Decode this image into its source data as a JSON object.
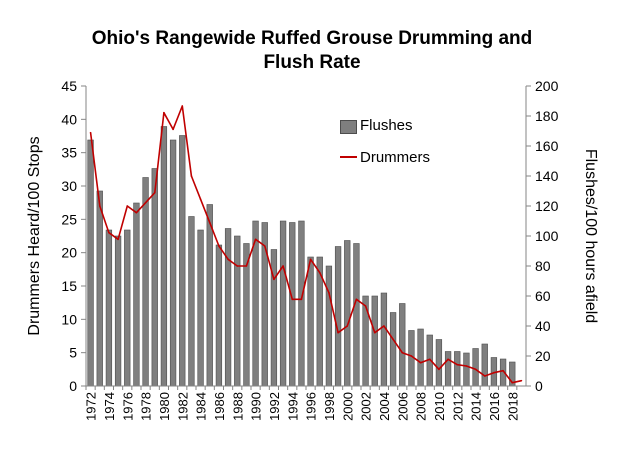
{
  "chart_data": {
    "type": "bar",
    "title_lines": [
      "Ohio's Rangewide Ruffed Grouse Drumming and",
      "Flush Rate"
    ],
    "ylabel": "Drummers Heard/100 Stops",
    "y2label": "Flushes/100 hours afield",
    "ylim": [
      0,
      45
    ],
    "y2lim": [
      0,
      200
    ],
    "yticks": [
      0,
      5,
      10,
      15,
      20,
      25,
      30,
      35,
      40,
      45
    ],
    "y2ticks": [
      0,
      20,
      40,
      60,
      80,
      100,
      120,
      140,
      160,
      180,
      200
    ],
    "x": [
      1972,
      1973,
      1974,
      1975,
      1976,
      1977,
      1978,
      1979,
      1980,
      1981,
      1982,
      1983,
      1984,
      1985,
      1986,
      1987,
      1988,
      1989,
      1990,
      1991,
      1992,
      1993,
      1994,
      1995,
      1996,
      1997,
      1998,
      1999,
      2000,
      2001,
      2002,
      2003,
      2004,
      2005,
      2006,
      2007,
      2008,
      2009,
      2010,
      2011,
      2012,
      2013,
      2014,
      2015,
      2016,
      2017,
      2018,
      2019
    ],
    "xtick_labels": [
      "1972",
      "1974",
      "1976",
      "1978",
      "1980",
      "1982",
      "1984",
      "1986",
      "1988",
      "1990",
      "1992",
      "1994",
      "1996",
      "1998",
      "2000",
      "2002",
      "2004",
      "2006",
      "2008",
      "2010",
      "2012",
      "2014",
      "2016",
      "2018"
    ],
    "series": [
      {
        "name": "Flushes",
        "type": "bar",
        "axis": "right",
        "color": "#7f7f7f",
        "values": [
          164,
          130,
          104,
          100,
          104,
          122,
          139,
          145,
          173,
          164,
          167,
          113,
          104,
          121,
          94,
          105,
          100,
          95,
          110,
          109,
          91,
          110,
          109,
          110,
          86,
          86,
          80,
          93,
          97,
          95,
          60,
          60,
          62,
          49,
          55,
          37,
          38,
          34,
          31,
          23,
          23,
          22,
          25,
          28,
          19,
          18,
          16,
          null
        ]
      },
      {
        "name": "Drummers",
        "type": "line",
        "axis": "left",
        "color": "#c00000",
        "values": [
          38,
          27,
          23,
          22,
          27,
          26,
          27.5,
          29,
          41,
          38.5,
          42,
          31.5,
          28,
          24.5,
          21,
          19,
          18,
          18,
          22,
          21,
          16,
          18,
          13,
          13,
          19,
          17,
          14,
          8,
          9,
          13,
          12,
          8,
          9,
          7,
          5,
          4.5,
          3.5,
          4,
          2.5,
          4,
          3.2,
          3,
          2.5,
          1.5,
          2,
          2.3,
          0.5,
          0.8
        ]
      }
    ],
    "legend_position": "top-right (inside plot)",
    "grid": false
  }
}
